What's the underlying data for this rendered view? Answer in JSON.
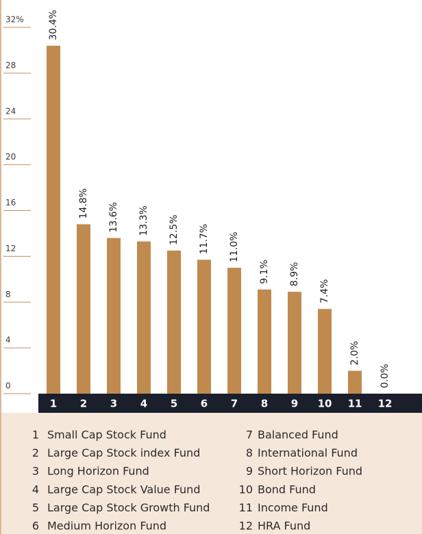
{
  "chart_data": {
    "type": "bar",
    "categories": [
      "1",
      "2",
      "3",
      "4",
      "5",
      "6",
      "7",
      "8",
      "9",
      "10",
      "11",
      "12"
    ],
    "values": [
      30.4,
      14.8,
      13.6,
      13.3,
      12.5,
      11.7,
      11.0,
      9.1,
      8.9,
      7.4,
      2.0,
      0.0
    ],
    "value_labels": [
      "30.4%",
      "14.8%",
      "13.6%",
      "13.3%",
      "12.5%",
      "11.7%",
      "11.0%",
      "9.1%",
      "8.9%",
      "7.4%",
      "2.0%",
      "0.0%"
    ],
    "fund_names": [
      "Small Cap Stock Fund",
      "Large Cap Stock index Fund",
      "Long Horizon Fund",
      "Large Cap Stock Value Fund",
      "Large Cap Stock Growth Fund",
      "Medium Horizon Fund",
      "Balanced Fund",
      "International Fund",
      "Short Horizon Fund",
      "Bond Fund",
      "Income Fund",
      "HRA Fund"
    ],
    "color": "#c08a4f",
    "ylim": [
      0,
      32
    ],
    "yticks": [
      0,
      4,
      8,
      12,
      16,
      20,
      24,
      28,
      {
        "value": 32,
        "label": "32%"
      }
    ],
    "grid": true
  }
}
